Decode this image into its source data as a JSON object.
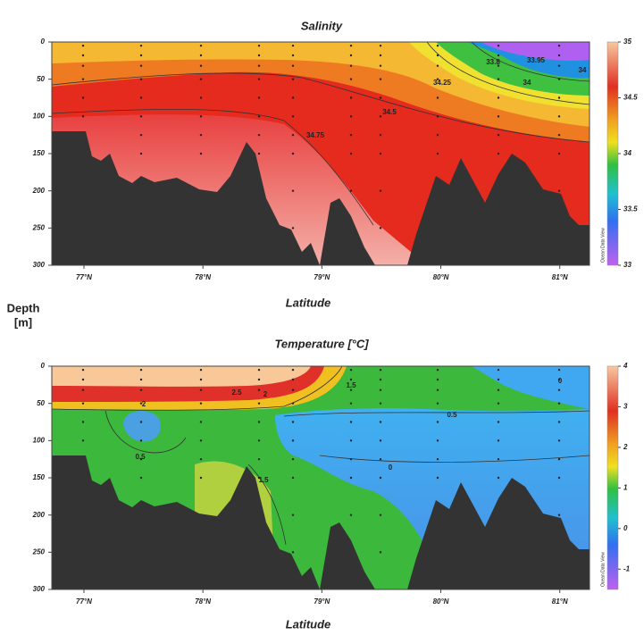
{
  "chart_data": [
    {
      "type": "section",
      "title": "Salinity",
      "xlabel": "Latitude",
      "ylabel": [
        "Depth",
        "[m]"
      ],
      "xlim": [
        76.73,
        81.25
      ],
      "xticks": [
        {
          "value": 77,
          "label": "77°N"
        },
        {
          "value": 78,
          "label": "78°N"
        },
        {
          "value": 79,
          "label": "79°N"
        },
        {
          "value": 80,
          "label": "80°N"
        },
        {
          "value": 81,
          "label": "81°N"
        }
      ],
      "ylim": [
        0,
        300
      ],
      "yticks": [
        0,
        50,
        100,
        150,
        200,
        250,
        300
      ],
      "colorbar": {
        "lim": [
          33,
          35
        ],
        "ticks": [
          33,
          33.5,
          34,
          34.5,
          35
        ],
        "label": "Ocean Data View"
      },
      "contour_labels": [
        33.8,
        33.95,
        34,
        34,
        34.25,
        34.5,
        34.75
      ]
    },
    {
      "type": "section",
      "title": "Temperature [°C]",
      "xlabel": "Latitude",
      "xlim": [
        76.73,
        81.25
      ],
      "xticks": [
        {
          "value": 77,
          "label": "77°N"
        },
        {
          "value": 78,
          "label": "78°N"
        },
        {
          "value": 79,
          "label": "79°N"
        },
        {
          "value": 80,
          "label": "80°N"
        },
        {
          "value": 81,
          "label": "81°N"
        }
      ],
      "ylim": [
        0,
        300
      ],
      "yticks": [
        0,
        50,
        100,
        150,
        200,
        250,
        300
      ],
      "colorbar": {
        "lim": [
          -1.5,
          4
        ],
        "ticks": [
          -1,
          0,
          1,
          2,
          3,
          4
        ],
        "label": "Ocean Data View"
      },
      "contour_labels": [
        2,
        2.5,
        2,
        1.5,
        0.5,
        0.5,
        1.5,
        0,
        0
      ]
    }
  ]
}
